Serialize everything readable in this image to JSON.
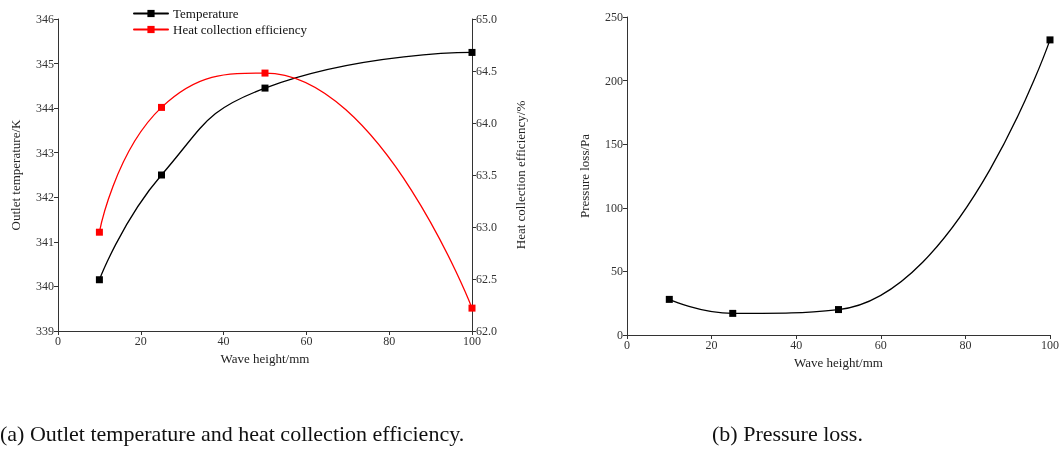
{
  "chart_data": [
    {
      "type": "line",
      "x": [
        10,
        25,
        50,
        100
      ],
      "xlabel": "Wave height/mm",
      "ylabel": "Outlet temperature/K",
      "y2label": "Heat collection efficiency/%",
      "series": [
        {
          "name": "Temperature",
          "color": "#000000",
          "values": [
            340.15,
            342.5,
            344.45,
            345.25
          ]
        },
        {
          "name": "Heat collection efficiency",
          "color": "#ff0000",
          "values": [
            62.95,
            64.15,
            64.48,
            62.22
          ],
          "axis": "y2"
        }
      ],
      "xlim": [
        0,
        100
      ],
      "xticks": [
        0,
        20,
        40,
        60,
        80,
        100
      ],
      "ylim": [
        339,
        346
      ],
      "yticks": [
        339,
        340,
        341,
        342,
        343,
        344,
        345,
        346
      ],
      "y2lim": [
        62,
        65
      ],
      "y2ticks": [
        {
          "value": 62,
          "label": "62.0"
        },
        {
          "value": 62.5,
          "label": "62.5"
        },
        {
          "value": 63,
          "label": "63.0"
        },
        {
          "value": 63.5,
          "label": "63.5"
        },
        {
          "value": 64,
          "label": "64.0"
        },
        {
          "value": 64.5,
          "label": "64.5"
        },
        {
          "value": 65,
          "label": "65.0"
        }
      ],
      "marker": "square",
      "legend": "top",
      "grid": false,
      "annotations": [
        "(a) Outlet temperature and heat collection efficiency."
      ]
    },
    {
      "type": "line",
      "x": [
        10,
        25,
        50,
        100
      ],
      "xlabel": "Wave height/mm",
      "ylabel": "Pressure loss/Pa",
      "series": [
        {
          "color": "#000000",
          "values": [
            28,
            17,
            20,
            232
          ]
        }
      ],
      "xlim": [
        0,
        100
      ],
      "xticks": [
        0,
        20,
        40,
        60,
        80,
        100
      ],
      "ylim": [
        0,
        250
      ],
      "yticks": [
        0,
        50,
        100,
        150,
        200,
        250
      ],
      "marker": "square",
      "grid": false,
      "annotations": [
        "(b) Pressure loss."
      ]
    }
  ]
}
